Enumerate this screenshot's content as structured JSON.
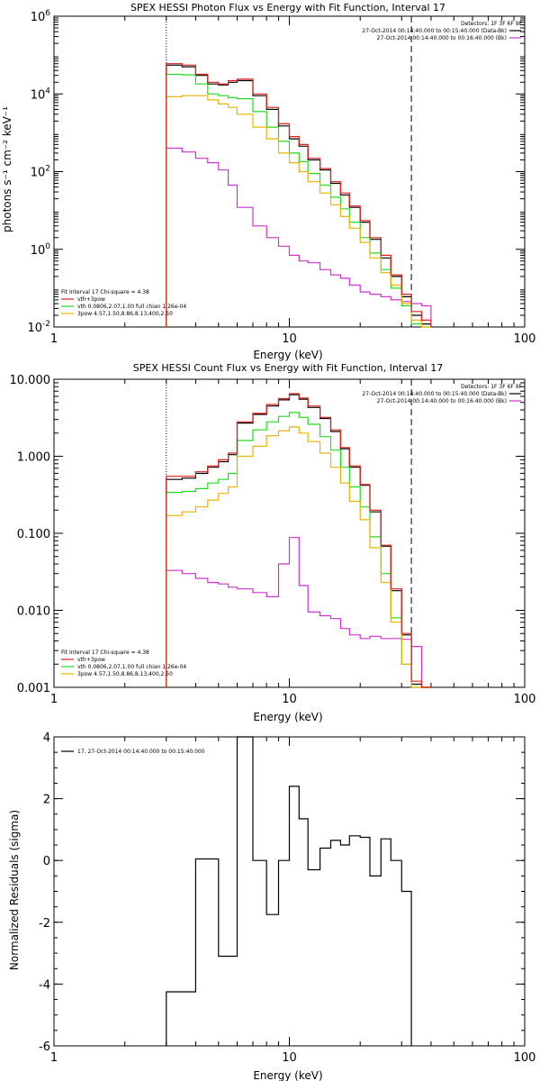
{
  "chart_data": [
    {
      "type": "line",
      "title": "SPEX HESSI Photon Flux vs Energy with Fit Function, Interval 17",
      "xlabel": "Energy (keV)",
      "ylabel": "photons s⁻¹ cm⁻² keV⁻¹",
      "xscale": "log",
      "yscale": "log",
      "xlim": [
        1,
        100
      ],
      "ylim": [
        0.01,
        1000000
      ],
      "xticks": [
        {
          "v": 1,
          "label": "1"
        },
        {
          "v": 10,
          "label": "10"
        },
        {
          "v": 100,
          "label": "100"
        }
      ],
      "yticks": [
        {
          "v": 0.01,
          "base": "10",
          "exp": "-2"
        },
        {
          "v": 1,
          "base": "10",
          "exp": "0"
        },
        {
          "v": 100,
          "base": "10",
          "exp": "2"
        },
        {
          "v": 10000,
          "base": "10",
          "exp": "4"
        },
        {
          "v": 1000000,
          "base": "10",
          "exp": "6"
        }
      ],
      "vlines": [
        {
          "x": 3.0,
          "style": "dotted"
        },
        {
          "x": 33.0,
          "style": "dashed"
        }
      ],
      "legend_right": {
        "title": "Detectors: 1F 3F 6F 9F",
        "items": [
          {
            "text": "27-Oct-2014 00:14:40.000 to 00:15:40.000 (Data-Bk)",
            "color": "#000000"
          },
          {
            "text": "27-Oct-2014 00:14:40.000 to 00:16:40.000 (Bk)",
            "color": "#cc33cc"
          }
        ]
      },
      "legend_left": {
        "title": "Fit Interval 17    Chi-square = 4.38",
        "items": [
          {
            "text": "vth+3pow",
            "color": "#e02020"
          },
          {
            "text": "vth 0.0806,2.07,1.00  full chian 1.26e-04",
            "color": "#20dd20"
          },
          {
            "text": "3pow 4.57,1.50,8.86,8.13,400,2.50",
            "color": "#e8b400"
          }
        ]
      },
      "edges": [
        3.0,
        3.5,
        4.0,
        4.5,
        5.0,
        5.5,
        6.0,
        7.0,
        8.0,
        9.0,
        10.0,
        11.0,
        12.0,
        13.5,
        15.0,
        16.5,
        18.0,
        20.0,
        22.0,
        24.5,
        27.0,
        30.0,
        33.0,
        36.5,
        40.0
      ],
      "series": [
        {
          "color": "#000000",
          "values": [
            55000,
            50000,
            30000,
            18000,
            17000,
            20000,
            22000,
            9000,
            4000,
            1500,
            700,
            450,
            200,
            110,
            50,
            25,
            12,
            5,
            1.8,
            0.6,
            0.2,
            0.06,
            0.02,
            0.012
          ]
        },
        {
          "color": "#cc33cc",
          "values": [
            400,
            320,
            220,
            170,
            110,
            45,
            12,
            4,
            2,
            1.2,
            0.7,
            0.5,
            0.45,
            0.3,
            0.22,
            0.18,
            0.12,
            0.08,
            0.07,
            0.06,
            0.05,
            0.045,
            0.04,
            0.035
          ]
        },
        {
          "color": "#20dd20",
          "values": [
            32000,
            31000,
            18000,
            10000,
            9000,
            8000,
            7500,
            3500,
            1400,
            600,
            300,
            180,
            90,
            45,
            22,
            11,
            5,
            2,
            0.8,
            0.3,
            0.1,
            0.035,
            0.012,
            0.01
          ]
        },
        {
          "color": "#e8b400",
          "values": [
            8500,
            9000,
            9000,
            7000,
            5500,
            4500,
            3000,
            1400,
            700,
            300,
            170,
            100,
            55,
            28,
            14,
            7,
            3.5,
            1.5,
            0.6,
            0.25,
            0.12,
            0.04,
            0.015,
            0.01
          ]
        },
        {
          "color": "#e02020",
          "values": [
            60000,
            55000,
            32000,
            20000,
            18000,
            22000,
            24000,
            10000,
            4500,
            1700,
            800,
            500,
            220,
            120,
            55,
            28,
            13,
            5.5,
            2,
            0.7,
            0.22,
            0.07,
            0.025,
            0.015
          ]
        }
      ]
    },
    {
      "type": "line",
      "title": "SPEX HESSI Count Flux vs Energy with Fit Function, Interval 17",
      "xlabel": "Energy (keV)",
      "ylabel": "",
      "xscale": "log",
      "yscale": "log",
      "xlim": [
        1,
        100
      ],
      "ylim": [
        0.001,
        10
      ],
      "xticks": [
        {
          "v": 1,
          "label": "1"
        },
        {
          "v": 10,
          "label": "10"
        },
        {
          "v": 100,
          "label": "100"
        }
      ],
      "yticks": [
        {
          "v": 0.001,
          "label": "0.001"
        },
        {
          "v": 0.01,
          "label": "0.010"
        },
        {
          "v": 0.1,
          "label": "0.100"
        },
        {
          "v": 1,
          "label": "1.000"
        },
        {
          "v": 10,
          "label": "10.000"
        }
      ],
      "vlines": [
        {
          "x": 3.0,
          "style": "dotted"
        },
        {
          "x": 33.0,
          "style": "dashed"
        }
      ],
      "legend_right": {
        "title": "Detectors: 1F 3F 6F 9F",
        "items": [
          {
            "text": "27-Oct-2014 00:14:40.000 to 00:15:40.000 (Data-Bk)",
            "color": "#000000"
          },
          {
            "text": "27-Oct-2014 00:14:40.000 to 00:16:40.000 (Bk)",
            "color": "#cc33cc"
          }
        ]
      },
      "legend_left": {
        "title": "Fit Interval 17    Chi-square = 4.38",
        "items": [
          {
            "text": "vth+3pow",
            "color": "#e02020"
          },
          {
            "text": "vth 0.0806,2.07,1.00  full chian 1.26e-04",
            "color": "#20dd20"
          },
          {
            "text": "3pow 4.57,1.50,8.86,8.13,400,2.50",
            "color": "#e8b400"
          }
        ]
      },
      "edges": [
        3.0,
        3.5,
        4.0,
        4.5,
        5.0,
        5.5,
        6.0,
        7.0,
        8.0,
        9.0,
        10.0,
        11.0,
        12.0,
        13.5,
        15.0,
        16.5,
        18.0,
        20.0,
        22.0,
        24.5,
        27.0,
        30.0,
        33.0,
        36.5,
        40.0
      ],
      "series": [
        {
          "color": "#000000",
          "values": [
            0.5,
            0.52,
            0.6,
            0.72,
            0.85,
            1.05,
            2.7,
            3.5,
            4.5,
            5.4,
            6.3,
            5.5,
            4.3,
            3.1,
            2.1,
            1.25,
            0.72,
            0.42,
            0.19,
            0.068,
            0.018,
            0.0048,
            0.0011,
            0.001
          ]
        },
        {
          "color": "#cc33cc",
          "values": [
            0.033,
            0.03,
            0.026,
            0.023,
            0.022,
            0.02,
            0.019,
            0.017,
            0.015,
            0.04,
            0.088,
            0.021,
            0.0095,
            0.0085,
            0.0078,
            0.0058,
            0.0048,
            0.0043,
            0.0046,
            0.0043,
            0.0043,
            0.0042,
            0.0034,
            0.001
          ]
        },
        {
          "color": "#20dd20",
          "values": [
            0.34,
            0.35,
            0.38,
            0.45,
            0.5,
            0.6,
            1.6,
            2.2,
            2.8,
            3.3,
            3.7,
            3.2,
            2.6,
            1.8,
            1.2,
            0.72,
            0.4,
            0.22,
            0.09,
            0.03,
            0.008,
            0.002,
            0.001,
            0.001
          ]
        },
        {
          "color": "#e8b400",
          "values": [
            0.17,
            0.19,
            0.22,
            0.27,
            0.33,
            0.4,
            1.0,
            1.35,
            1.85,
            2.15,
            2.4,
            2.0,
            1.55,
            1.1,
            0.72,
            0.45,
            0.26,
            0.15,
            0.065,
            0.023,
            0.007,
            0.002,
            0.001,
            0.001
          ]
        },
        {
          "color": "#e02020",
          "values": [
            0.55,
            0.55,
            0.63,
            0.75,
            0.9,
            1.1,
            2.8,
            3.6,
            4.7,
            5.6,
            6.5,
            5.7,
            4.5,
            3.2,
            2.2,
            1.3,
            0.75,
            0.43,
            0.2,
            0.07,
            0.019,
            0.005,
            0.0012,
            0.001
          ]
        }
      ]
    },
    {
      "type": "line",
      "title": "",
      "xlabel": "Energy (keV)",
      "ylabel": "Normalized Residuals (sigma)",
      "xscale": "log",
      "yscale": "linear",
      "xlim": [
        1,
        100
      ],
      "ylim": [
        -6,
        4
      ],
      "xticks": [
        {
          "v": 1,
          "label": "1"
        },
        {
          "v": 10,
          "label": "10"
        },
        {
          "v": 100,
          "label": "100"
        }
      ],
      "yticks": [
        {
          "v": -6,
          "label": "-6"
        },
        {
          "v": -4,
          "label": "-4"
        },
        {
          "v": -2,
          "label": "-2"
        },
        {
          "v": 0,
          "label": "0"
        },
        {
          "v": 2,
          "label": "2"
        },
        {
          "v": 4,
          "label": "4"
        }
      ],
      "legend_left": {
        "title": "",
        "items": [
          {
            "text": "17. 27-Oct-2014 00:14:40.000 to 00:15:40.000",
            "color": "#000000"
          }
        ]
      },
      "edges": [
        3.0,
        4.0,
        5.0,
        6.0,
        7.0,
        8.0,
        9.0,
        10.0,
        11.0,
        12.0,
        13.5,
        15.0,
        16.5,
        18.0,
        20.0,
        22.0,
        24.5,
        27.0,
        30.0,
        33.0
      ],
      "series": [
        {
          "color": "#000000",
          "values": [
            -4.25,
            0.05,
            -3.1,
            4.0,
            0.0,
            -1.75,
            0.0,
            2.4,
            1.35,
            -0.3,
            0.4,
            0.65,
            0.5,
            0.8,
            0.75,
            -0.5,
            0.7,
            0.0,
            -1.0
          ]
        }
      ]
    }
  ]
}
